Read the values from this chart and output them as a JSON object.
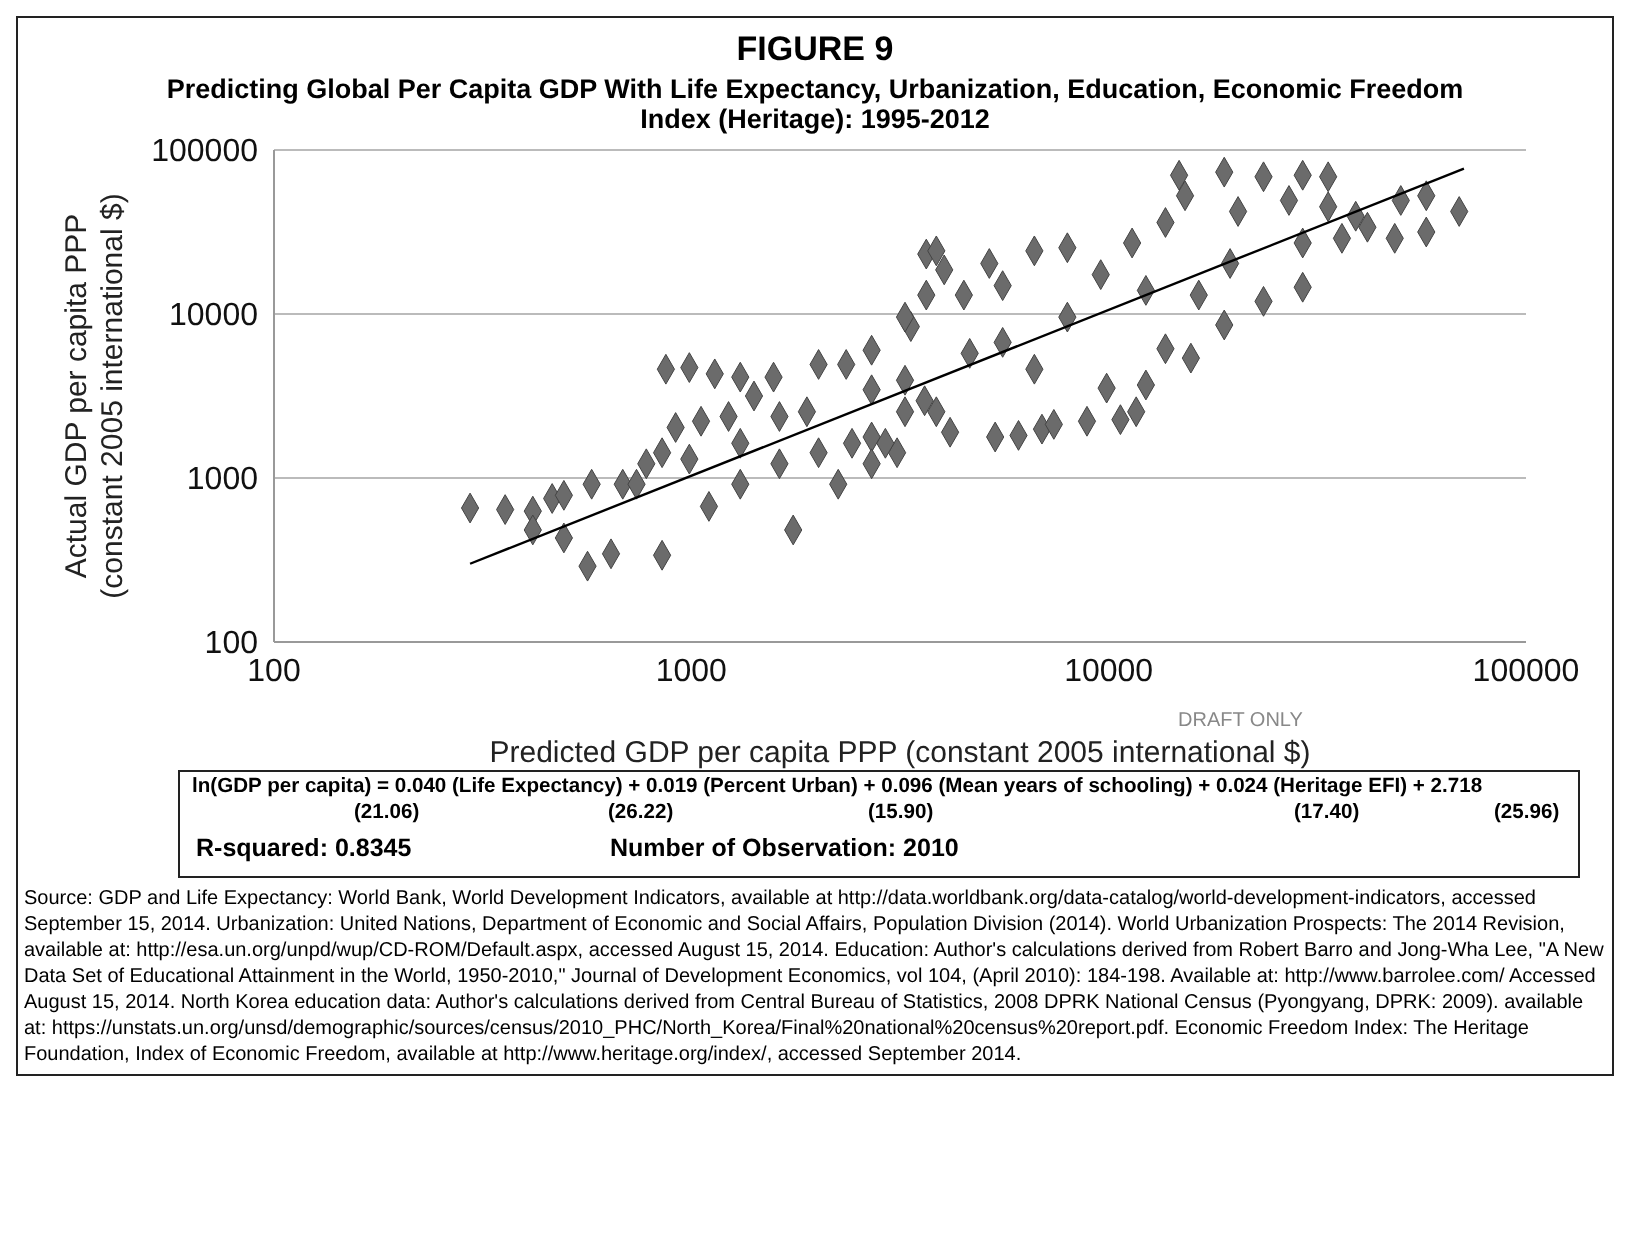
{
  "chart_data": {
    "type": "scatter",
    "title": "FIGURE 9",
    "subtitle": "Predicting Global Per Capita GDP With Life Expectancy, Urbanization, Education, Economic Freedom Index (Heritage): 1995-2012",
    "xlabel": "Predicted GDP per capita PPP (constant 2005 international $)",
    "ylabel": "Actual GDP per capita PPP (constant 2005 international $)",
    "log": "xy",
    "grid": "y",
    "xlim": [
      100,
      100000
    ],
    "xticks": [
      100,
      1000,
      10000,
      100000
    ],
    "ylim": [
      100,
      100000
    ],
    "yticks": [
      100,
      1000,
      10000,
      100000
    ],
    "series": [
      {
        "marker": "diamond",
        "color": "#6b6b6b",
        "x": [
          295,
          358,
          417,
          417,
          464,
          495,
          564,
          642,
          495,
          577,
          685,
          780,
          851,
          851,
          917,
          1055,
          1228,
          869,
          989,
          1138,
          1310,
          1574,
          1754,
          1413,
          1626,
          2018,
          2350,
          1310,
          1102,
          1626,
          2018,
          2249,
          2704,
          3251,
          3357,
          3656,
          3656,
          3112,
          2427,
          2704,
          1310,
          1892,
          989,
          739,
          2704,
          2704,
          3251,
          3864,
          4036,
          5176,
          6637,
          4498,
          5572,
          3622,
          4169,
          5346,
          6081,
          6921,
          7390,
          8872,
          10670,
          11640,
          9888,
          12280,
          15740,
          13680,
          18920,
          23500,
          29170,
          5572,
          7962,
          6637,
          9572,
          7962,
          11380,
          13680,
          14750,
          18920,
          23500,
          29170,
          33570,
          15240,
          20420,
          27040,
          33570,
          39080,
          29170,
          36220,
          48470,
          57680,
          69170,
          50120,
          57680,
          41690,
          19540,
          12280,
          16440,
          4645,
          3251,
          2917,
          3864
        ],
        "values": [
          656,
          642,
          628,
          482,
          750,
          431,
          290,
          345,
          784,
          916,
          916,
          1221,
          1426,
          338,
          2032,
          2218,
          2371,
          4606,
          4714,
          4315,
          4121,
          4121,
          482,
          3162,
          2371,
          4924,
          4924,
          916,
          671,
          1221,
          1426,
          916,
          1778,
          2535,
          8377,
          13040,
          23190,
          1426,
          1628,
          3452,
          1628,
          2535,
          1304,
          916,
          6012,
          1221,
          9572,
          24260,
          18580,
          20320,
          24260,
          13040,
          14890,
          2958,
          1901,
          1778,
          1818,
          1986,
          2123,
          2218,
          2269,
          2535,
          3532,
          3690,
          5383,
          6138,
          8570,
          11940,
          14560,
          6714,
          9572,
          4606,
          17380,
          25350,
          27100,
          36140,
          70150,
          73280,
          68660,
          70150,
          68660,
          52600,
          42170,
          49230,
          45080,
          39450,
          27100,
          28940,
          28940,
          31620,
          42170,
          49230,
          52600,
          33810,
          20320,
          13930,
          13040,
          5754,
          3945,
          1628,
          2535
        ]
      },
      {
        "type": "line",
        "color": "#000000",
        "x": [
          295,
          71000
        ],
        "values": [
          300,
          77000
        ]
      }
    ],
    "annotations": [
      "DRAFT ONLY",
      "ln(GDP per capita) = 0.040 (Life Expectancy) + 0.019 (Percent Urban) + 0.096 (Mean years of schooling) + 0.024 (Heritage EFI) + 2.718",
      "(21.06)",
      "(26.22)",
      "(15.90)",
      "(17.40)",
      "(25.96)",
      "R-squared: 0.8345",
      "Number of Observation: 2010",
      "Source: GDP and Life Expectancy: World Bank, World Development Indicators, available at http://data.worldbank.org/data-catalog/world-development-indicators, accessed September 15, 2014. Urbanization: United Nations, Department of Economic and Social Affairs, Population Division (2014). World Urbanization Prospects: The 2014 Revision, available at: http://esa.un.org/unpd/wup/CD-ROM/Default.aspx, accessed August 15, 2014. Education: Author's calculations derived from Robert Barro and Jong-Wha Lee, \"A New Data Set of Educational Attainment in the World, 1950-2010,\" Journal of Development Economics, vol 104, (April 2010): 184-198. Available at: http://www.barrolee.com/ Accessed August 15, 2014. North Korea education data: Author's calculations derived from Central Bureau of Statistics, 2008 DPRK National Census (Pyongyang, DPRK: 2009). available at: https://unstats.un.org/unsd/demographic/sources/census/2010_PHC/North_Korea/Final%20national%20census%20report.pdf. Economic Freedom Index: The Heritage Foundation, Index of Economic Freedom, available at http://www.heritage.org/index/, accessed September 2014."
    ]
  }
}
